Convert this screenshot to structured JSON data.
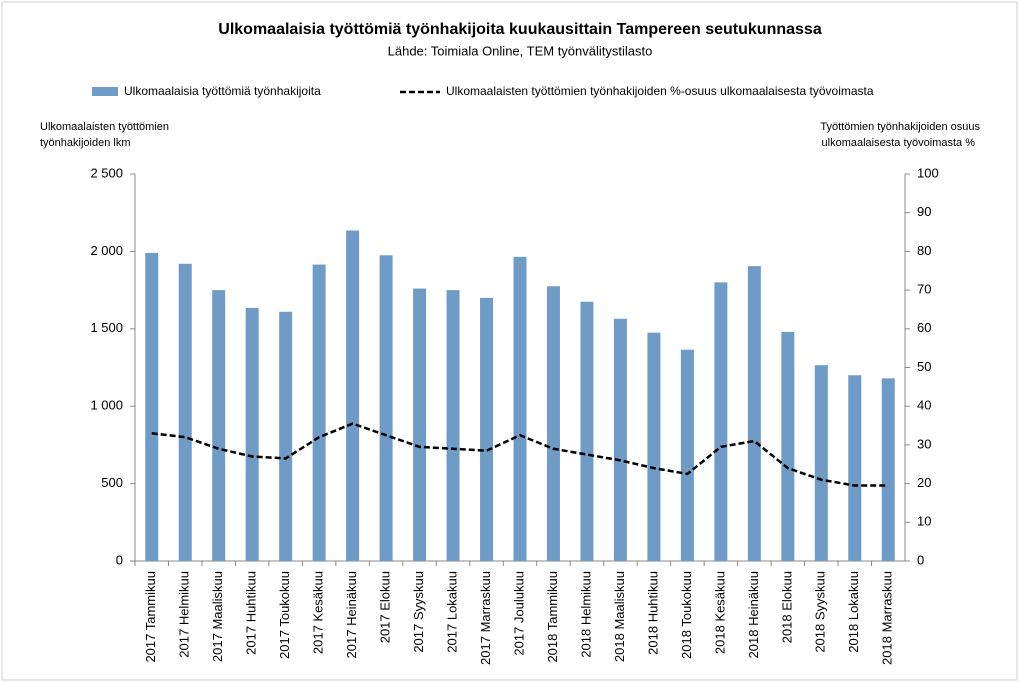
{
  "chart_data": {
    "type": "bar_line",
    "title": "Ulkomaalaisia työttömiä työnhakijoita kuukausittain Tampereen seutukunnassa",
    "subtitle": "Lähde: Toimiala Online, TEM työnvälitystilasto",
    "y_label": [
      "Ulkomaalaisten työttömien",
      "työnhakijoiden lkm"
    ],
    "y2_label": [
      "Työttömien työnhakijoiden osuus",
      "ulkomaalaisesta työvoimasta %"
    ],
    "categories": [
      "2017 Tammikuu",
      "2017 Helmikuu",
      "2017 Maaliskuu",
      "2017 Huhtikuu",
      "2017 Toukokuu",
      "2017 Kesäkuu",
      "2017 Heinäkuu",
      "2017 Elokuu",
      "2017 Syyskuu",
      "2017 Lokakuu",
      "2017 Marraskuu",
      "2017 Joulukuu",
      "2018 Tammikuu",
      "2018 Helmikuu",
      "2018 Maaliskuu",
      "2018 Huhtikuu",
      "2018 Toukokuu",
      "2018 Kesäkuu",
      "2018 Heinäkuu",
      "2018 Elokuu",
      "2018 Syyskuu",
      "2018 Lokakuu",
      "2018 Marraskuu"
    ],
    "series": [
      {
        "name": "Ulkomaalaisia työttömiä työnhakijoita",
        "type": "bar",
        "color": "#6f9cc6",
        "values": [
          1990,
          1920,
          1750,
          1635,
          1610,
          1915,
          2135,
          1975,
          1760,
          1750,
          1700,
          1965,
          1775,
          1675,
          1565,
          1475,
          1365,
          1800,
          1905,
          1480,
          1265,
          1200,
          1180
        ]
      },
      {
        "name": "Ulkomaalaisten työttömien työnhakijoiden %-osuus ulkomaalaisesta työvoimasta",
        "type": "line",
        "color": "#000000",
        "dashed": true,
        "axis": "y2",
        "values": [
          33,
          32,
          29,
          27,
          26.5,
          32,
          35.5,
          32.5,
          29.5,
          29,
          28.5,
          32.5,
          29,
          27.5,
          26,
          24,
          22.5,
          29.5,
          31,
          24,
          21,
          19.5,
          19.5
        ]
      }
    ],
    "ylim": [
      0,
      2500
    ],
    "yticks": [
      0,
      500,
      {
        "value": 1000,
        "label": "1 000"
      },
      {
        "value": 1500,
        "label": "1 500"
      },
      {
        "value": 2000,
        "label": "2 000"
      },
      {
        "value": 2500,
        "label": "2 500"
      }
    ],
    "y2lim": [
      0,
      100
    ],
    "y2ticks": [
      0,
      10,
      20,
      30,
      40,
      50,
      60,
      70,
      80,
      90,
      100
    ]
  }
}
